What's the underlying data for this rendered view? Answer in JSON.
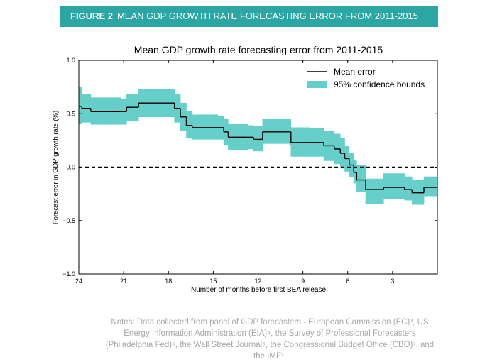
{
  "header": {
    "label": "FIGURE 2",
    "title": "MEAN GDP GROWTH RATE FORECASTING ERROR FROM 2011-2015"
  },
  "chart_data": {
    "type": "line",
    "title": "Mean GDP growth rate forecasting error from 2011-2015",
    "x_label": "Number of months before first BEA release",
    "y_label": "Forecast error in GDP growth rate (%)",
    "xlim": [
      24,
      0
    ],
    "xticks": [
      24,
      21,
      18,
      15,
      12,
      9,
      6,
      3
    ],
    "ylim": [
      -1,
      1
    ],
    "yticks": [
      {
        "value": -1,
        "label": "−1.0"
      },
      {
        "value": -0.5,
        "label": "−0.5"
      },
      {
        "value": 0,
        "label": "0.0"
      },
      {
        "value": 0.5,
        "label": "0.5"
      },
      {
        "value": 1,
        "label": "1.0"
      }
    ],
    "reference_line": 0,
    "step": true,
    "legend": "upper right",
    "x": [
      24,
      23.8,
      23.2,
      21.2,
      20.8,
      20,
      17.9,
      17.6,
      17.2,
      16.8,
      16.4,
      14.7,
      14.3,
      14,
      12.7,
      12.3,
      11.7,
      9.9,
      9.8,
      8.5,
      7.6,
      6.9,
      6.5,
      6.2,
      5.9,
      5.6,
      5.4,
      4.8,
      3.6,
      2.2,
      1.7,
      0.9,
      0
    ],
    "series": [
      {
        "name": "Mean error",
        "color": "#000000",
        "values": [
          0.57,
          0.55,
          0.52,
          0.52,
          0.56,
          0.6,
          0.6,
          0.55,
          0.47,
          0.39,
          0.37,
          0.37,
          0.33,
          0.28,
          0.28,
          0.26,
          0.33,
          0.33,
          0.23,
          0.23,
          0.2,
          0.17,
          0.13,
          0.08,
          0.02,
          -0.05,
          -0.12,
          -0.21,
          -0.19,
          -0.21,
          -0.24,
          -0.19,
          -0.19
        ]
      },
      {
        "name": "95% confidence bounds",
        "color": "#66cfca",
        "upper": [
          0.75,
          0.68,
          0.65,
          0.64,
          0.68,
          0.73,
          0.73,
          0.68,
          0.6,
          0.52,
          0.49,
          0.48,
          0.45,
          0.4,
          0.39,
          0.38,
          0.45,
          0.45,
          0.37,
          0.36,
          0.34,
          0.31,
          0.27,
          0.2,
          0.13,
          0.06,
          0.02,
          -0.11,
          -0.06,
          -0.09,
          -0.12,
          -0.09,
          -0.09
        ],
        "lower": [
          0.41,
          0.42,
          0.4,
          0.4,
          0.43,
          0.47,
          0.47,
          0.42,
          0.34,
          0.27,
          0.26,
          0.26,
          0.21,
          0.16,
          0.17,
          0.15,
          0.22,
          0.21,
          0.1,
          0.1,
          0.06,
          0.03,
          -0.01,
          -0.04,
          -0.09,
          -0.15,
          -0.23,
          -0.34,
          -0.3,
          -0.31,
          -0.35,
          -0.27,
          -0.28
        ]
      }
    ]
  },
  "notes": "Notes: Data collected from panel of GDP forecasters - European Commission (EC)³, US Energy Information Administration (EIA)⁴, the Survey of Professional Forecasters (Philadelphia Fed)⁵, the Wall Street Journal⁶, the Congressional Budget Office (CBO)⁷, and the IMF¹."
}
